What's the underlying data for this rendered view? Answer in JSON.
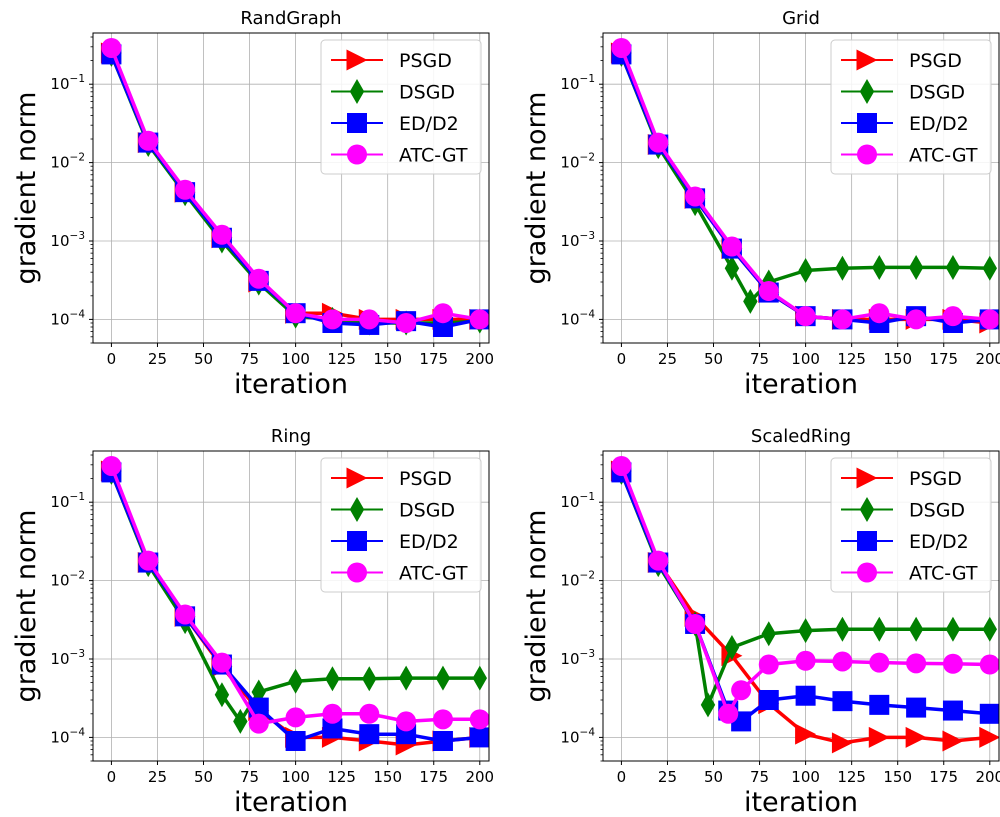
{
  "chart_data": [
    {
      "type": "line",
      "title": "RandGraph",
      "xlabel": "iteration",
      "ylabel": "gradient norm",
      "xlim": [
        -10,
        205
      ],
      "ylim": [
        5e-05,
        0.45
      ],
      "yscale": "log",
      "xticks": [
        "0",
        "25",
        "50",
        "75",
        "100",
        "125",
        "150",
        "175",
        "200"
      ],
      "yticks": [
        {
          "value": 0.1,
          "mant": "10",
          "exp": "−1"
        },
        {
          "value": 0.01,
          "mant": "10",
          "exp": "−2"
        },
        {
          "value": 0.001,
          "mant": "10",
          "exp": "−3"
        },
        {
          "value": 0.0001,
          "mant": "10",
          "exp": "−4"
        }
      ],
      "grid": true,
      "legend": "top-right",
      "series": [
        {
          "name": "PSGD",
          "color": "#ff0000",
          "marker": "triangle-right",
          "x": [
            0,
            20,
            40,
            60,
            80,
            100,
            120,
            140,
            160,
            180,
            200
          ],
          "y": [
            0.25,
            0.018,
            0.0042,
            0.0011,
            0.0003,
            0.00012,
            0.00012,
            0.0001,
            0.0001,
            0.0001,
            0.0001
          ]
        },
        {
          "name": "DSGD",
          "color": "#008000",
          "marker": "diamond",
          "x": [
            0,
            20,
            40,
            60,
            80,
            100,
            120,
            140,
            160,
            180,
            200
          ],
          "y": [
            0.24,
            0.017,
            0.004,
            0.001,
            0.00029,
            0.00011,
            0.0001,
            9e-05,
            9e-05,
            9e-05,
            9.5e-05
          ]
        },
        {
          "name": "ED/D2",
          "color": "#0000ff",
          "marker": "square",
          "x": [
            0,
            20,
            40,
            60,
            80,
            100,
            120,
            140,
            160,
            180,
            200
          ],
          "y": [
            0.24,
            0.018,
            0.0042,
            0.0011,
            0.00031,
            0.00012,
            9e-05,
            8.5e-05,
            9.5e-05,
            8e-05,
            0.0001
          ]
        },
        {
          "name": "ATC-GT",
          "color": "#ff00ff",
          "marker": "circle",
          "x": [
            0,
            20,
            40,
            60,
            80,
            100,
            120,
            140,
            160,
            180,
            200
          ],
          "y": [
            0.29,
            0.019,
            0.0045,
            0.0012,
            0.00033,
            0.00012,
            0.0001,
            0.0001,
            9e-05,
            0.00012,
            0.0001
          ]
        }
      ]
    },
    {
      "type": "line",
      "title": "Grid",
      "xlabel": "iteration",
      "ylabel": "gradient norm",
      "xlim": [
        -10,
        205
      ],
      "ylim": [
        5e-05,
        0.45
      ],
      "yscale": "log",
      "xticks": [
        "0",
        "25",
        "50",
        "75",
        "100",
        "125",
        "150",
        "175",
        "200"
      ],
      "yticks": [
        {
          "value": 0.1,
          "mant": "10",
          "exp": "−1"
        },
        {
          "value": 0.01,
          "mant": "10",
          "exp": "−2"
        },
        {
          "value": 0.001,
          "mant": "10",
          "exp": "−3"
        },
        {
          "value": 0.0001,
          "mant": "10",
          "exp": "−4"
        }
      ],
      "grid": true,
      "legend": "top-right",
      "series": [
        {
          "name": "PSGD",
          "color": "#ff0000",
          "marker": "triangle-right",
          "x": [
            0,
            20,
            40,
            60,
            80,
            100,
            120,
            140,
            160,
            180,
            200
          ],
          "y": [
            0.25,
            0.017,
            0.0035,
            0.0008,
            0.00022,
            0.00011,
            0.0001,
            0.0001,
            0.0001,
            0.0001,
            9e-05
          ]
        },
        {
          "name": "DSGD",
          "color": "#008000",
          "marker": "diamond",
          "x": [
            0,
            20,
            40,
            60,
            70,
            80,
            100,
            120,
            140,
            160,
            180,
            200
          ],
          "y": [
            0.24,
            0.016,
            0.003,
            0.00045,
            0.00017,
            0.0003,
            0.00042,
            0.00045,
            0.00046,
            0.00046,
            0.00046,
            0.00045
          ]
        },
        {
          "name": "ED/D2",
          "color": "#0000ff",
          "marker": "square",
          "x": [
            0,
            20,
            40,
            60,
            80,
            100,
            120,
            140,
            160,
            180,
            200
          ],
          "y": [
            0.24,
            0.017,
            0.0035,
            0.0008,
            0.00022,
            0.00011,
            0.0001,
            9e-05,
            0.00011,
            9e-05,
            0.0001
          ]
        },
        {
          "name": "ATC-GT",
          "color": "#ff00ff",
          "marker": "circle",
          "x": [
            0,
            20,
            40,
            60,
            80,
            100,
            120,
            140,
            160,
            180,
            200
          ],
          "y": [
            0.29,
            0.018,
            0.0037,
            0.00085,
            0.00023,
            0.00011,
            0.0001,
            0.00012,
            0.0001,
            0.00011,
            0.0001
          ]
        }
      ]
    },
    {
      "type": "line",
      "title": "Ring",
      "xlabel": "iteration",
      "ylabel": "gradient norm",
      "xlim": [
        -10,
        205
      ],
      "ylim": [
        5e-05,
        0.45
      ],
      "yscale": "log",
      "xticks": [
        "0",
        "25",
        "50",
        "75",
        "100",
        "125",
        "150",
        "175",
        "200"
      ],
      "yticks": [
        {
          "value": 0.1,
          "mant": "10",
          "exp": "−1"
        },
        {
          "value": 0.01,
          "mant": "10",
          "exp": "−2"
        },
        {
          "value": 0.001,
          "mant": "10",
          "exp": "−3"
        },
        {
          "value": 0.0001,
          "mant": "10",
          "exp": "−4"
        }
      ],
      "grid": true,
      "legend": "top-right",
      "series": [
        {
          "name": "PSGD",
          "color": "#ff0000",
          "marker": "triangle-right",
          "x": [
            0,
            20,
            40,
            60,
            80,
            100,
            120,
            140,
            160,
            180,
            200
          ],
          "y": [
            0.25,
            0.017,
            0.0035,
            0.0008,
            0.00022,
            0.0001,
            0.0001,
            9e-05,
            8e-05,
            9e-05,
            0.0001
          ]
        },
        {
          "name": "DSGD",
          "color": "#008000",
          "marker": "diamond",
          "x": [
            0,
            20,
            40,
            60,
            70,
            80,
            100,
            120,
            140,
            160,
            180,
            200
          ],
          "y": [
            0.24,
            0.016,
            0.003,
            0.00035,
            0.00016,
            0.00038,
            0.00052,
            0.00056,
            0.00056,
            0.00057,
            0.00057,
            0.00057
          ]
        },
        {
          "name": "ED/D2",
          "color": "#0000ff",
          "marker": "square",
          "x": [
            0,
            20,
            40,
            60,
            80,
            100,
            120,
            140,
            160,
            180,
            200
          ],
          "y": [
            0.24,
            0.017,
            0.0035,
            0.00085,
            0.00024,
            9e-05,
            0.00013,
            0.00011,
            0.00011,
            9e-05,
            0.0001
          ]
        },
        {
          "name": "ATC-GT",
          "color": "#ff00ff",
          "marker": "circle",
          "x": [
            0,
            20,
            40,
            60,
            80,
            100,
            120,
            140,
            160,
            180,
            200
          ],
          "y": [
            0.29,
            0.018,
            0.0037,
            0.0009,
            0.00015,
            0.00018,
            0.0002,
            0.0002,
            0.00016,
            0.00017,
            0.00017
          ]
        }
      ]
    },
    {
      "type": "line",
      "title": "ScaledRing",
      "xlabel": "iteration",
      "ylabel": "gradient norm",
      "xlim": [
        -10,
        205
      ],
      "ylim": [
        5e-05,
        0.45
      ],
      "yscale": "log",
      "xticks": [
        "0",
        "25",
        "50",
        "75",
        "100",
        "125",
        "150",
        "175",
        "200"
      ],
      "yticks": [
        {
          "value": 0.1,
          "mant": "10",
          "exp": "−1"
        },
        {
          "value": 0.01,
          "mant": "10",
          "exp": "−2"
        },
        {
          "value": 0.001,
          "mant": "10",
          "exp": "−3"
        },
        {
          "value": 0.0001,
          "mant": "10",
          "exp": "−4"
        }
      ],
      "grid": true,
      "legend": "top-right",
      "series": [
        {
          "name": "PSGD",
          "color": "#ff0000",
          "marker": "triangle-right",
          "x": [
            0,
            20,
            40,
            60,
            80,
            100,
            120,
            140,
            160,
            180,
            200
          ],
          "y": [
            0.25,
            0.017,
            0.0035,
            0.0011,
            0.00027,
            0.00011,
            8.5e-05,
            0.0001,
            0.0001,
            9e-05,
            0.0001
          ]
        },
        {
          "name": "DSGD",
          "color": "#008000",
          "marker": "diamond",
          "x": [
            0,
            20,
            40,
            47,
            60,
            80,
            100,
            120,
            140,
            160,
            180,
            200
          ],
          "y": [
            0.24,
            0.016,
            0.0028,
            0.00026,
            0.0014,
            0.0021,
            0.0023,
            0.0024,
            0.0024,
            0.0024,
            0.0024,
            0.0024
          ]
        },
        {
          "name": "ED/D2",
          "color": "#0000ff",
          "marker": "square",
          "x": [
            0,
            20,
            40,
            58,
            65,
            80,
            100,
            120,
            140,
            160,
            180,
            200
          ],
          "y": [
            0.24,
            0.017,
            0.0028,
            0.00022,
            0.00016,
            0.0003,
            0.00034,
            0.00029,
            0.00026,
            0.00024,
            0.00022,
            0.0002
          ]
        },
        {
          "name": "ATC-GT",
          "color": "#ff00ff",
          "marker": "circle",
          "x": [
            0,
            20,
            40,
            58,
            65,
            80,
            100,
            120,
            140,
            160,
            180,
            200
          ],
          "y": [
            0.29,
            0.018,
            0.0028,
            0.0002,
            0.0004,
            0.00085,
            0.00095,
            0.00093,
            0.0009,
            0.00088,
            0.00087,
            0.00085
          ]
        }
      ]
    }
  ]
}
